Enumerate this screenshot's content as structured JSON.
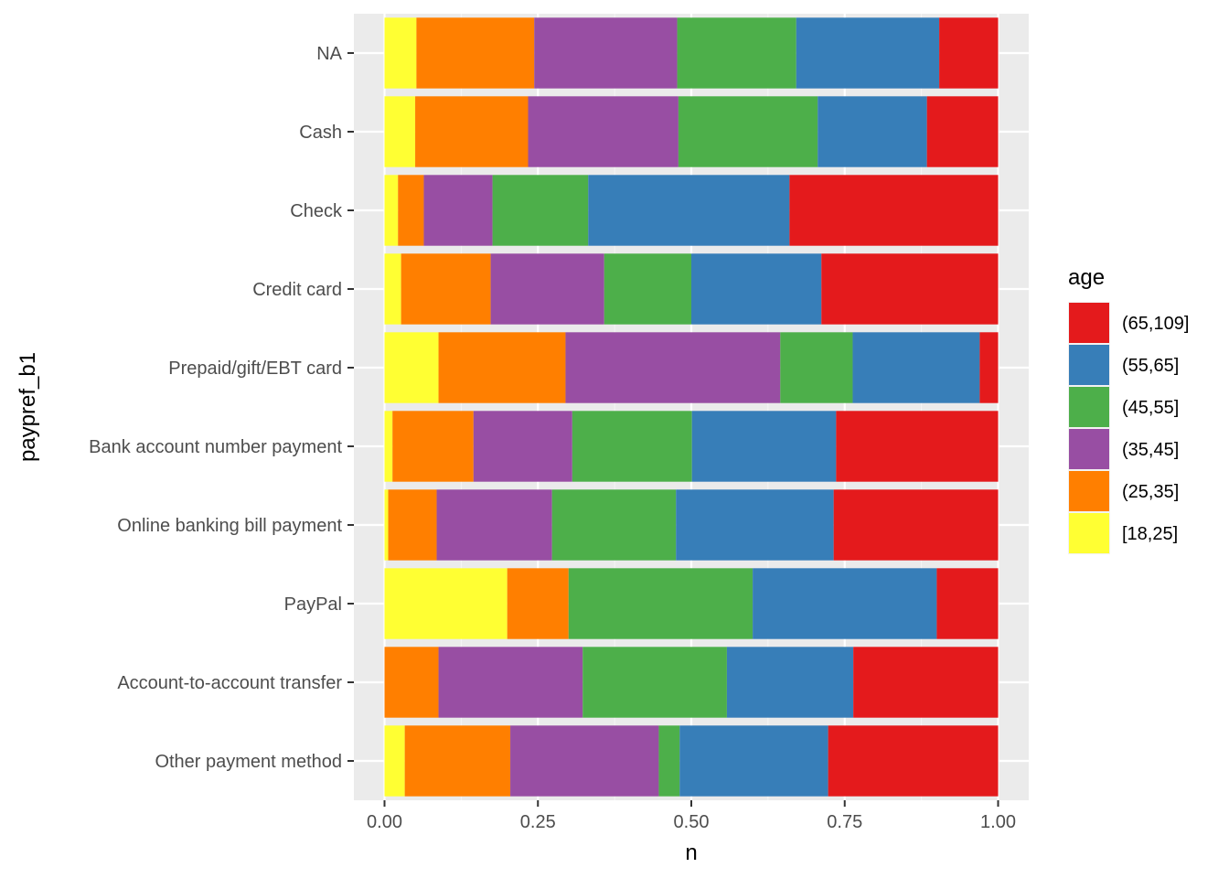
{
  "chart_data": {
    "type": "bar",
    "orientation": "horizontal",
    "stacked": "fill",
    "xlabel": "n",
    "ylabel": "paypref_b1",
    "xlim": [
      0,
      1
    ],
    "x_ticks": [
      "0.00",
      "0.25",
      "0.50",
      "0.75",
      "1.00"
    ],
    "grid": true,
    "legend_position": "right",
    "legend_title": "age",
    "categories": [
      "NA",
      "Cash",
      "Check",
      "Credit card",
      "Prepaid/gift/EBT card",
      "Bank account number payment",
      "Online banking bill payment",
      "PayPal",
      "Account-to-account transfer",
      "Other payment method"
    ],
    "series": [
      {
        "name": "[18,25]",
        "color": "#FFFF33",
        "values": [
          0.052,
          0.05,
          0.022,
          0.027,
          0.088,
          0.013,
          0.006,
          0.2,
          0.0,
          0.033
        ]
      },
      {
        "name": "(25,35]",
        "color": "#FF7F00",
        "values": [
          0.192,
          0.184,
          0.042,
          0.146,
          0.207,
          0.132,
          0.079,
          0.1,
          0.088,
          0.172
        ]
      },
      {
        "name": "(35,45]",
        "color": "#984EA3",
        "values": [
          0.233,
          0.245,
          0.112,
          0.185,
          0.35,
          0.161,
          0.188,
          0.0,
          0.235,
          0.242
        ]
      },
      {
        "name": "(45,55]",
        "color": "#4DAF4A",
        "values": [
          0.194,
          0.227,
          0.156,
          0.142,
          0.118,
          0.195,
          0.202,
          0.3,
          0.235,
          0.034
        ]
      },
      {
        "name": "(55,65]",
        "color": "#377EB8",
        "values": [
          0.233,
          0.178,
          0.328,
          0.212,
          0.207,
          0.235,
          0.257,
          0.3,
          0.206,
          0.242
        ]
      },
      {
        "name": "(65,109]",
        "color": "#E41A1C",
        "values": [
          0.096,
          0.116,
          0.34,
          0.288,
          0.03,
          0.264,
          0.268,
          0.1,
          0.236,
          0.277
        ]
      }
    ],
    "legend_order": [
      "(65,109]",
      "(55,65]",
      "(45,55]",
      "(35,45]",
      "(25,35]",
      "[18,25]"
    ]
  },
  "colors": {
    "panel_background": "#EBEBEB",
    "grid_major": "#FFFFFF",
    "grid_minor": "#F5F5F5",
    "tick_text": "#4D4D4D",
    "tick_mark": "#333333"
  }
}
